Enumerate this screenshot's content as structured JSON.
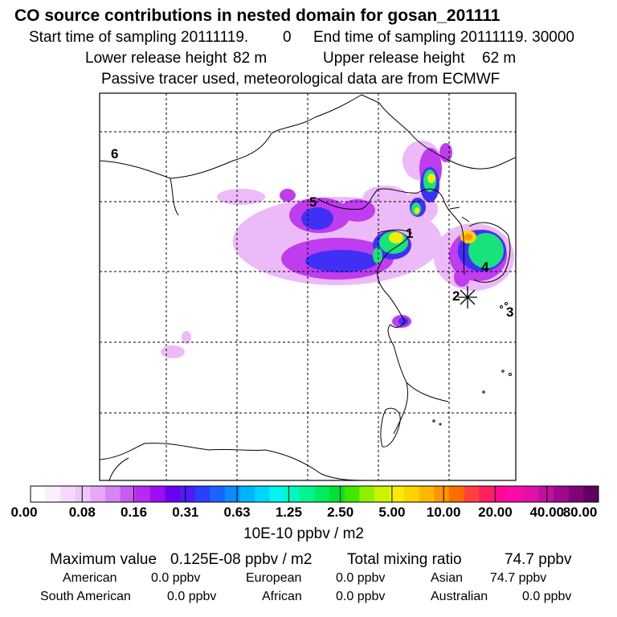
{
  "header": {
    "title": "CO  source contributions in nested domain for gosan_201111",
    "start_label": "Start time of sampling 20111119.",
    "start_value": "0",
    "end_label": "End time of sampling 20111119. 30000",
    "lower_label": "Lower release height",
    "lower_value": "82 m",
    "upper_label": "Upper release height",
    "upper_value": "62 m",
    "note": "Passive tracer used, meteorological data are from ECMWF"
  },
  "map": {
    "region_labels": [
      "1",
      "2",
      "3",
      "4",
      "5",
      "6"
    ]
  },
  "colorbar": {
    "colors": [
      "#ffffff",
      "#fbeefe",
      "#f5d9fc",
      "#eec6fa",
      "#e6a8f7",
      "#d884f4",
      "#c85cf0",
      "#b52cee",
      "#9f0cf0",
      "#6a00f2",
      "#4d1cf6",
      "#2a40fa",
      "#1a64fc",
      "#0a8cfe",
      "#00b4fe",
      "#00d6fc",
      "#00f4f0",
      "#00f8c0",
      "#00f490",
      "#00ec60",
      "#00e230",
      "#40e800",
      "#90f000",
      "#c8f400",
      "#f6ec00",
      "#ffd400",
      "#ffb800",
      "#ff9400",
      "#ff6c00",
      "#ff4040",
      "#ff2060",
      "#ff0898",
      "#f80ca8",
      "#e010a8",
      "#c010a0",
      "#a00890",
      "#800478",
      "#600060"
    ],
    "tick_labels": [
      "0.00",
      "0.08",
      "0.16",
      "0.31",
      "0.63",
      "1.25",
      "2.50",
      "5.00",
      "10.00",
      "20.00",
      "40.00",
      "80.00"
    ],
    "unit": "10E-10 ppbv / m2"
  },
  "stats": {
    "max_label": "Maximum value",
    "max_value": "0.125E-08 ppbv / m2",
    "total_label": "Total mixing ratio",
    "total_value": "74.7 ppbv",
    "regions": [
      {
        "name": "American",
        "value": "0.0 ppbv"
      },
      {
        "name": "European",
        "value": "0.0 ppbv"
      },
      {
        "name": "Asian",
        "value": "74.7 ppbv"
      },
      {
        "name": "South American",
        "value": "0.0 ppbv"
      },
      {
        "name": "African",
        "value": "0.0 ppbv"
      },
      {
        "name": "Australian",
        "value": "0.0 ppbv"
      }
    ]
  }
}
